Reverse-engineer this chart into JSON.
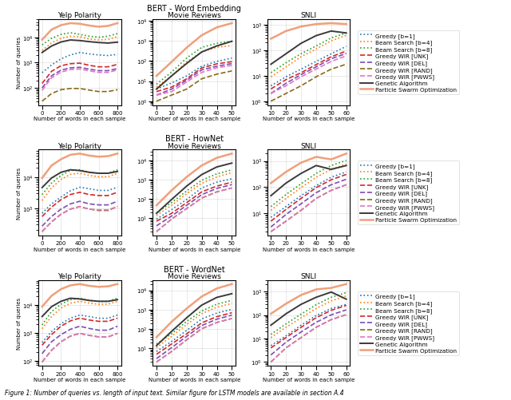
{
  "row_titles": [
    "BERT - Word Embedding",
    "BERT - HowNet",
    "BERT - WordNet"
  ],
  "col_titles": [
    "Yelp Polarity",
    "Movie Reviews",
    "SNLI"
  ],
  "xlabel": "Number of words in each sample",
  "ylabel": "Number of queries",
  "caption": "Figure 1: Number of queries vs. length of input text. Similar figure for LSTM models are available in section A.4",
  "legend_entries": [
    {
      "label": "Greedy [b=1]",
      "color": "#1f77b4",
      "linestyle": "dotted",
      "linewidth": 1.2
    },
    {
      "label": "Beam Search [b=4]",
      "color": "#ff7f0e",
      "linestyle": "dotted",
      "linewidth": 1.2
    },
    {
      "label": "Beam Search [b=8]",
      "color": "#2ca02c",
      "linestyle": "dotted",
      "linewidth": 1.2
    },
    {
      "label": "Greedy WIR [UNK]",
      "color": "#d62728",
      "linestyle": "dashed",
      "linewidth": 1.2
    },
    {
      "label": "Greedy WIR [DEL]",
      "color": "#7b4db7",
      "linestyle": "dashed",
      "linewidth": 1.2
    },
    {
      "label": "Greedy WIR [RAND]",
      "color": "#8b6914",
      "linestyle": "dashed",
      "linewidth": 1.2
    },
    {
      "label": "Greedy WIR [PWWS]",
      "color": "#e377c2",
      "linestyle": "dashed",
      "linewidth": 1.2
    },
    {
      "label": "Genetic Algorithm",
      "color": "#3a3a3a",
      "linestyle": "solid",
      "linewidth": 1.4
    },
    {
      "label": "Particle Swarm Optimization",
      "color": "#f0a07a",
      "linestyle": "solid",
      "linewidth": 1.8
    }
  ],
  "yelp_x": [
    0,
    100,
    200,
    300,
    400,
    500,
    600,
    700,
    800
  ],
  "movie_x": [
    0,
    10,
    20,
    30,
    40,
    50
  ],
  "snli_x": [
    10,
    20,
    30,
    40,
    50,
    60
  ],
  "plots": {
    "word_embedding": {
      "yelp": {
        "greedy_b1": [
          400,
          800,
          1400,
          2000,
          2500,
          2200,
          2000,
          1900,
          2100
        ],
        "beam_b4": [
          3000,
          6000,
          9000,
          11000,
          10500,
          8500,
          7800,
          8200,
          10500
        ],
        "beam_b8": [
          5000,
          9000,
          13000,
          15000,
          13000,
          11000,
          10000,
          11000,
          14000
        ],
        "wir_unk": [
          150,
          450,
          750,
          900,
          950,
          780,
          680,
          680,
          850
        ],
        "wir_del": [
          100,
          300,
          500,
          620,
          650,
          550,
          480,
          480,
          580
        ],
        "wir_rand": [
          30,
          60,
          85,
          95,
          95,
          82,
          72,
          72,
          85
        ],
        "wir_pwws": [
          80,
          250,
          420,
          530,
          560,
          470,
          410,
          410,
          510
        ],
        "genetic": [
          2500,
          4500,
          6500,
          7800,
          7400,
          6700,
          6200,
          5900,
          6400
        ],
        "pso": [
          8000,
          20000,
          30000,
          36000,
          34000,
          29000,
          26000,
          28000,
          36000
        ]
      },
      "movie": {
        "greedy_b1": [
          4,
          8,
          18,
          55,
          95,
          140
        ],
        "beam_b4": [
          5,
          18,
          90,
          280,
          480,
          580
        ],
        "beam_b8": [
          7,
          28,
          140,
          470,
          760,
          960
        ],
        "wir_unk": [
          3,
          5,
          13,
          45,
          72,
          92
        ],
        "wir_del": [
          2,
          4,
          11,
          36,
          55,
          74
        ],
        "wir_rand": [
          1,
          2,
          4,
          13,
          22,
          32
        ],
        "wir_pwws": [
          2,
          3,
          9,
          27,
          46,
          60
        ],
        "genetic": [
          4,
          18,
          75,
          280,
          560,
          950
        ],
        "pso": [
          18,
          90,
          460,
          1900,
          4700,
          7600
        ]
      },
      "snli": {
        "greedy_b1": [
          4,
          9,
          18,
          36,
          72,
          140
        ],
        "beam_b4": [
          9,
          22,
          55,
          110,
          230,
          380
        ],
        "beam_b8": [
          13,
          32,
          72,
          145,
          300,
          470
        ],
        "wir_unk": [
          3,
          7,
          13,
          27,
          55,
          92
        ],
        "wir_del": [
          2,
          5,
          11,
          22,
          46,
          74
        ],
        "wir_rand": [
          1,
          2,
          4,
          9,
          18,
          28
        ],
        "wir_pwws": [
          2,
          4,
          9,
          18,
          36,
          60
        ],
        "genetic": [
          28,
          72,
          185,
          370,
          560,
          470
        ],
        "pso": [
          280,
          560,
          840,
          1050,
          1140,
          1050
        ]
      }
    },
    "hownet": {
      "yelp": {
        "greedy_b1": [
          700,
          1400,
          2300,
          3700,
          4800,
          4300,
          3800,
          3800,
          4800
        ],
        "beam_b4": [
          1800,
          4600,
          8500,
          12500,
          13500,
          11500,
          10500,
          10500,
          13500
        ],
        "beam_b8": [
          2800,
          6500,
          11500,
          16500,
          17500,
          14500,
          13500,
          13500,
          17500
        ],
        "wir_unk": [
          550,
          1100,
          1900,
          2800,
          3300,
          2800,
          2600,
          2600,
          3300
        ],
        "wir_del": [
          270,
          550,
          950,
          1400,
          1700,
          1400,
          1300,
          1300,
          1700
        ],
        "wir_rand": [
          180,
          370,
          650,
          950,
          1150,
          950,
          860,
          860,
          1150
        ],
        "wir_pwws": [
          180,
          370,
          650,
          950,
          1150,
          950,
          900,
          900,
          1150
        ],
        "genetic": [
          4700,
          9500,
          14500,
          17500,
          16500,
          14500,
          13500,
          13500,
          15500
        ],
        "pso": [
          9500,
          24000,
          38000,
          53000,
          58000,
          50000,
          46000,
          48000,
          58000
        ]
      },
      "movie": {
        "greedy_b1": [
          9,
          28,
          95,
          380,
          760,
          1150
        ],
        "beam_b4": [
          14,
          47,
          190,
          670,
          1430,
          2380
        ],
        "beam_b8": [
          19,
          65,
          265,
          950,
          2095,
          3330
        ],
        "wir_unk": [
          7,
          18,
          65,
          238,
          475,
          760
        ],
        "wir_del": [
          4,
          13,
          47,
          170,
          360,
          570
        ],
        "wir_rand": [
          2,
          9,
          32,
          113,
          238,
          380
        ],
        "wir_pwws": [
          2,
          9,
          32,
          113,
          238,
          380
        ],
        "genetic": [
          18,
          95,
          475,
          1900,
          4750,
          7600
        ],
        "pso": [
          47,
          285,
          1425,
          5700,
          14250,
          23750
        ]
      },
      "snli": {
        "greedy_b1": [
          7,
          18,
          47,
          113,
          238,
          380
        ],
        "beam_b4": [
          13,
          37,
          95,
          237,
          475,
          760
        ],
        "beam_b8": [
          18,
          52,
          133,
          333,
          665,
          1045
        ],
        "wir_unk": [
          5,
          14,
          37,
          95,
          190,
          304
        ],
        "wir_del": [
          3,
          9,
          23,
          61,
          123,
          199
        ],
        "wir_rand": [
          2,
          5,
          13,
          37,
          75,
          123
        ],
        "wir_pwws": [
          2,
          5,
          13,
          37,
          75,
          123
        ],
        "genetic": [
          47,
          142,
          333,
          665,
          475,
          665
        ],
        "pso": [
          142,
          380,
          855,
          1425,
          1140,
          1900
        ]
      }
    },
    "wordnet": {
      "yelp": {
        "greedy_b1": [
          450,
          1100,
          2100,
          3300,
          4300,
          3800,
          3300,
          3300,
          4300
        ],
        "beam_b4": [
          1400,
          3800,
          7600,
          11400,
          13300,
          11400,
          10500,
          10500,
          13300
        ],
        "beam_b8": [
          1900,
          5700,
          10500,
          15200,
          17100,
          14300,
          13300,
          13300,
          17100
        ],
        "wir_unk": [
          360,
          860,
          1710,
          2660,
          3330,
          2850,
          2565,
          2565,
          3330
        ],
        "wir_del": [
          180,
          475,
          855,
          1330,
          1710,
          1425,
          1235,
          1235,
          1710
        ],
        "wir_rand": [
          90,
          237,
          475,
          760,
          950,
          808,
          712,
          712,
          950
        ],
        "wir_pwws": [
          90,
          237,
          475,
          760,
          950,
          808,
          712,
          712,
          950
        ],
        "genetic": [
          3800,
          8550,
          13300,
          17100,
          16150,
          14250,
          13300,
          13300,
          15200
        ],
        "pso": [
          8550,
          20900,
          36100,
          49400,
          55100,
          47500,
          43700,
          45600,
          55100
        ]
      },
      "movie": {
        "greedy_b1": [
          7,
          23,
          85,
          333,
          665,
          1045
        ],
        "beam_b4": [
          11,
          42,
          171,
          618,
          1330,
          2090
        ],
        "beam_b8": [
          17,
          57,
          247,
          855,
          1900,
          3040
        ],
        "wir_unk": [
          5,
          17,
          57,
          209,
          437,
          693
        ],
        "wir_del": [
          3,
          11,
          42,
          152,
          323,
          522
        ],
        "wir_rand": [
          2,
          7,
          28,
          104,
          218,
          351
        ],
        "wir_pwws": [
          2,
          7,
          28,
          104,
          218,
          351
        ],
        "genetic": [
          14,
          76,
          380,
          1710,
          4275,
          6650
        ],
        "pso": [
          38,
          237,
          1140,
          4750,
          12350,
          20900
        ]
      },
      "snli": {
        "greedy_b1": [
          5,
          13,
          37,
          95,
          190,
          285
        ],
        "beam_b4": [
          11,
          30,
          76,
          190,
          399,
          646
        ],
        "beam_b8": [
          15,
          42,
          109,
          275,
          570,
          902
        ],
        "wir_unk": [
          4,
          11,
          30,
          77,
          159,
          256
        ],
        "wir_del": [
          2,
          7,
          19,
          49,
          102,
          166
        ],
        "wir_rand": [
          1,
          4,
          11,
          30,
          64,
          104
        ],
        "wir_pwws": [
          1,
          4,
          11,
          30,
          64,
          104
        ],
        "genetic": [
          37,
          113,
          285,
          570,
          950,
          475
        ],
        "pso": [
          113,
          304,
          712,
          1235,
          1425,
          2090
        ]
      }
    }
  }
}
